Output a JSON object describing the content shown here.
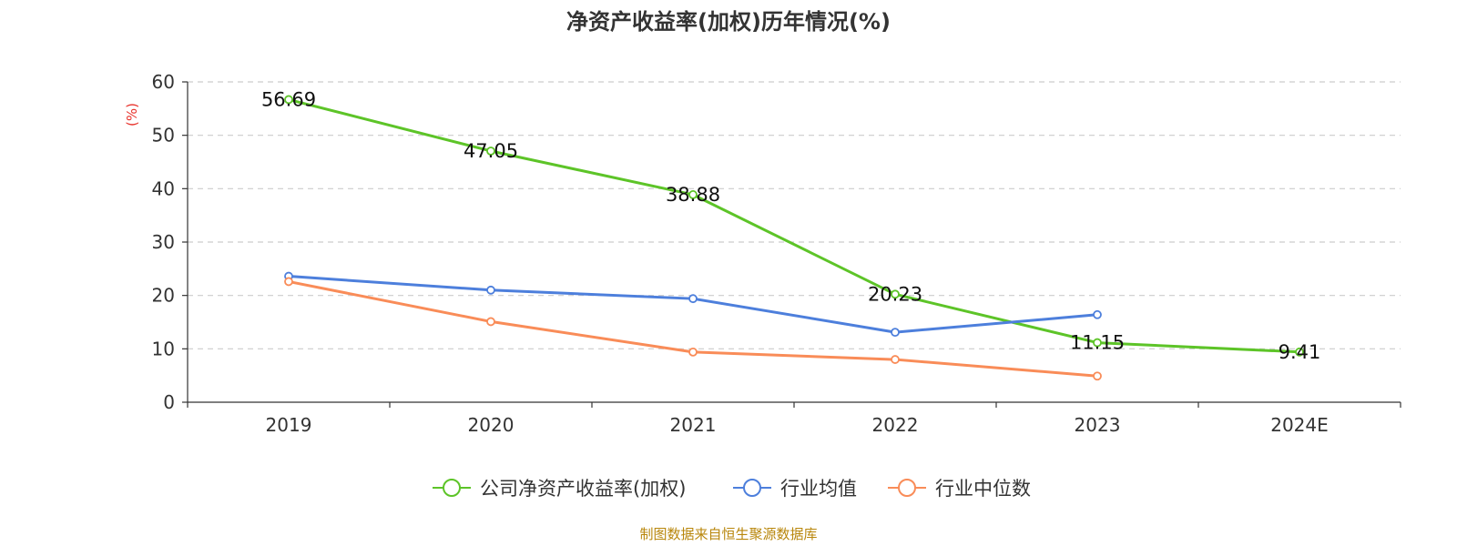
{
  "chart_data": {
    "type": "line",
    "title": "净资产收益率(加权)历年情况(%)",
    "ylabel": "(%)",
    "ylabel_color": "#e8322b",
    "categories": [
      "2019",
      "2020",
      "2021",
      "2022",
      "2023",
      "2024E"
    ],
    "ylim": [
      0,
      60
    ],
    "yticks": [
      0,
      10,
      20,
      30,
      40,
      50,
      60
    ],
    "grid": true,
    "series": [
      {
        "name": "公司净资产收益率(加权)",
        "color": "#5dc428",
        "values": [
          56.69,
          47.05,
          38.88,
          20.23,
          11.15,
          9.41
        ],
        "labels": [
          "56.69",
          "47.05",
          "38.88",
          "20.23",
          "11.15",
          "9.41"
        ]
      },
      {
        "name": "行业均值",
        "color": "#4d7fdc",
        "values": [
          23.6,
          21.0,
          19.4,
          13.1,
          16.4,
          null
        ]
      },
      {
        "name": "行业中位数",
        "color": "#f98c58",
        "values": [
          22.6,
          15.1,
          9.4,
          8.0,
          4.9,
          null
        ]
      }
    ],
    "legend_position": "bottom-center",
    "source": "制图数据来自恒生聚源数据库",
    "source_color": "#b8860b"
  }
}
